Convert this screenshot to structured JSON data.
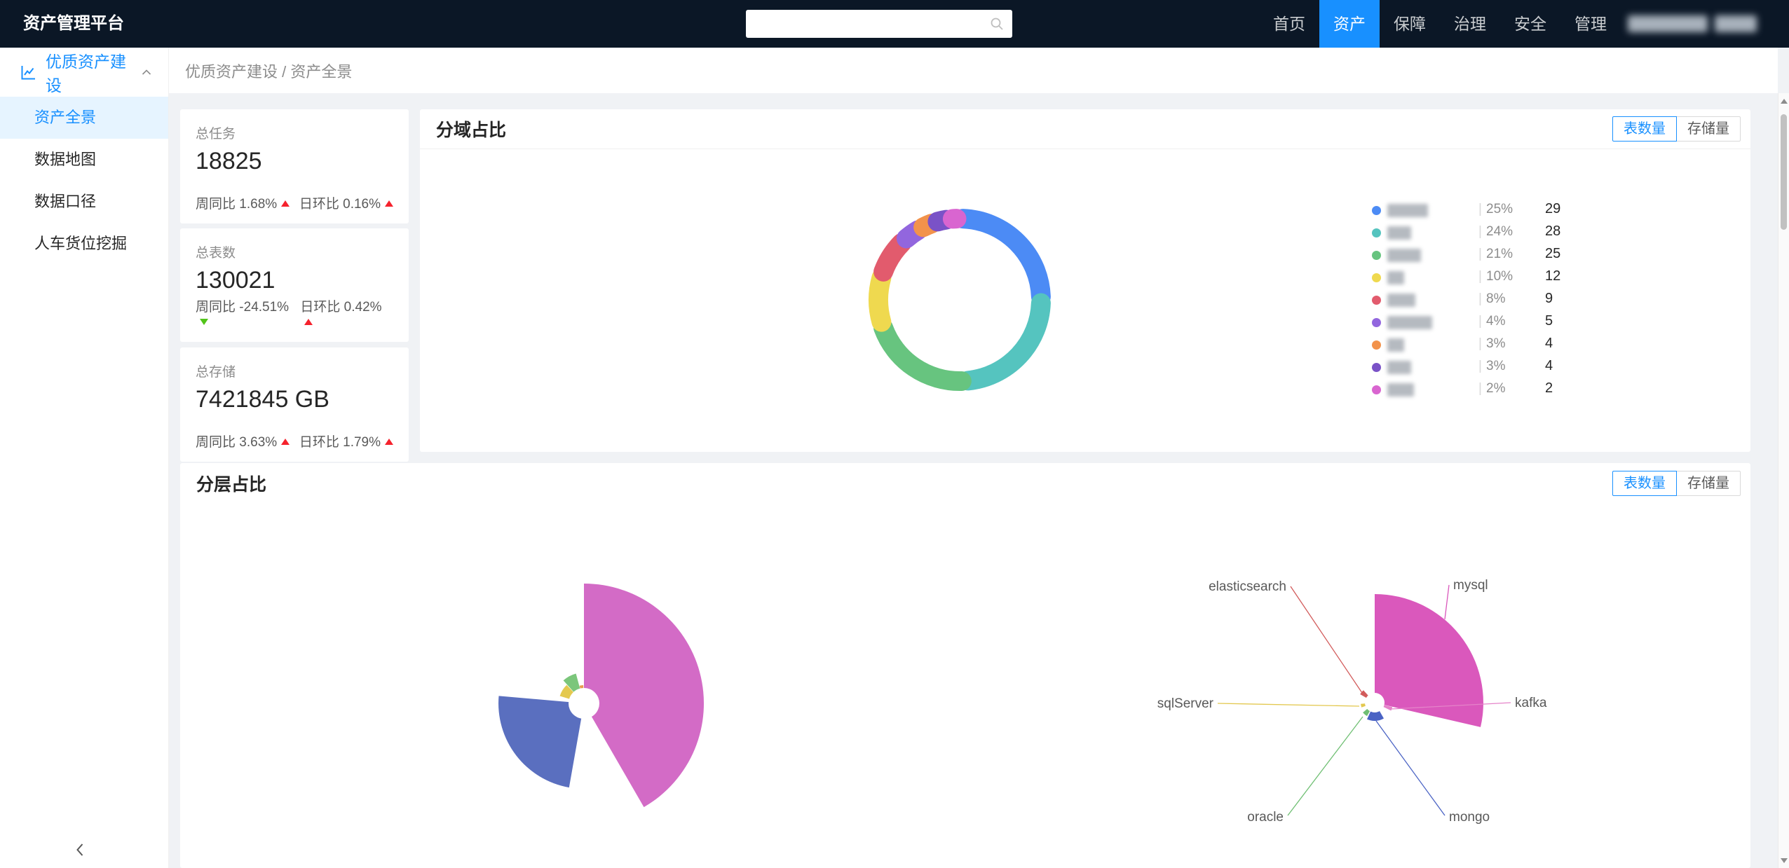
{
  "navbar": {
    "title": "资产管理平台",
    "search_placeholder": "",
    "items": [
      {
        "label": "首页",
        "active": false
      },
      {
        "label": "资产",
        "active": true
      },
      {
        "label": "保障",
        "active": false
      },
      {
        "label": "治理",
        "active": false
      },
      {
        "label": "安全",
        "active": false
      },
      {
        "label": "管理",
        "active": false
      }
    ],
    "user": {
      "redacted": true
    }
  },
  "sidebar": {
    "group_label": "优质资产建设",
    "items": [
      {
        "label": "资产全景",
        "active": true
      },
      {
        "label": "数据地图",
        "active": false
      },
      {
        "label": "数据口径",
        "active": false
      },
      {
        "label": "人车货位挖掘",
        "active": false
      }
    ]
  },
  "breadcrumb": {
    "text": "优质资产建设 / 资产全景"
  },
  "stats": [
    {
      "label": "总任务",
      "value": "18825",
      "week_label": "周同比",
      "week_value": "1.68%",
      "week_trend": "up",
      "day_label": "日环比",
      "day_value": "0.16%",
      "day_trend": "up"
    },
    {
      "label": "总表数",
      "value": "130021",
      "week_label": "周同比",
      "week_value": "-24.51%",
      "week_trend": "down",
      "day_label": "日环比",
      "day_value": "0.42%",
      "day_trend": "up"
    },
    {
      "label": "总存储",
      "value": "7421845 GB",
      "week_label": "周同比",
      "week_value": "3.63%",
      "week_trend": "up",
      "day_label": "日环比",
      "day_value": "1.79%",
      "day_trend": "up"
    }
  ],
  "colors": {
    "accent": "#1890ff",
    "trend_up": "#f5222d",
    "trend_down": "#52c41a"
  },
  "domain_card": {
    "title": "分域占比",
    "toggle": [
      {
        "label": "表数量",
        "active": true
      },
      {
        "label": "存储量",
        "active": false
      }
    ],
    "chart_data": {
      "type": "pie",
      "subtype": "donut",
      "legend_labels": "redacted",
      "slices": [
        {
          "pct": 25,
          "value": 29,
          "color": "#4C8BF5"
        },
        {
          "pct": 24,
          "value": 28,
          "color": "#55C4BF"
        },
        {
          "pct": 21,
          "value": 25,
          "color": "#67C47F"
        },
        {
          "pct": 10,
          "value": 12,
          "color": "#EFD94F"
        },
        {
          "pct": 8,
          "value": 9,
          "color": "#E25B6D"
        },
        {
          "pct": 4,
          "value": 5,
          "color": "#9266DE"
        },
        {
          "pct": 3,
          "value": 4,
          "color": "#F2924B"
        },
        {
          "pct": 3,
          "value": 4,
          "color": "#7A52C7"
        },
        {
          "pct": 2,
          "value": 2,
          "color": "#D965D0"
        }
      ]
    }
  },
  "layer_card": {
    "title": "分层占比",
    "toggle": [
      {
        "label": "表数量",
        "active": true
      },
      {
        "label": "存储量",
        "active": false
      }
    ],
    "chart_data": [
      {
        "type": "pie",
        "subtype": "rose",
        "labels": "not shown",
        "hole_r": 22,
        "slices": [
          {
            "color": "#D36BC6",
            "start": 0,
            "sweep": 150,
            "r": 171
          },
          {
            "color": "#5A6FBF",
            "start": 190,
            "sweep": 85,
            "r": 122
          },
          {
            "color": "#E4C94F",
            "start": 287,
            "sweep": 30,
            "r": 36
          },
          {
            "color": "#7BC67B",
            "start": 318,
            "sweep": 27,
            "r": 44
          },
          {
            "color": "#E89A4F",
            "start": 346,
            "sweep": 12,
            "r": 26
          }
        ]
      },
      {
        "type": "pie",
        "subtype": "rose",
        "hole_r": 14,
        "slices": [
          {
            "name": "mysql",
            "color": "#DA58BC",
            "start": 0,
            "sweep": 103,
            "r": 155
          },
          {
            "name": "kafka",
            "color": "#E583C9",
            "start": 104,
            "sweep": 12,
            "r": 26
          },
          {
            "name": "mongo",
            "color": "#4A63C4",
            "start": 150,
            "sweep": 55,
            "r": 26
          },
          {
            "name": "oracle",
            "color": "#6FBF73",
            "start": 210,
            "sweep": 20,
            "r": 22
          },
          {
            "name": "sqlServer",
            "color": "#E3C84F",
            "start": 250,
            "sweep": 15,
            "r": 20
          },
          {
            "name": "elasticsearch",
            "color": "#D25B5B",
            "start": 300,
            "sweep": 18,
            "r": 24
          }
        ]
      }
    ]
  }
}
